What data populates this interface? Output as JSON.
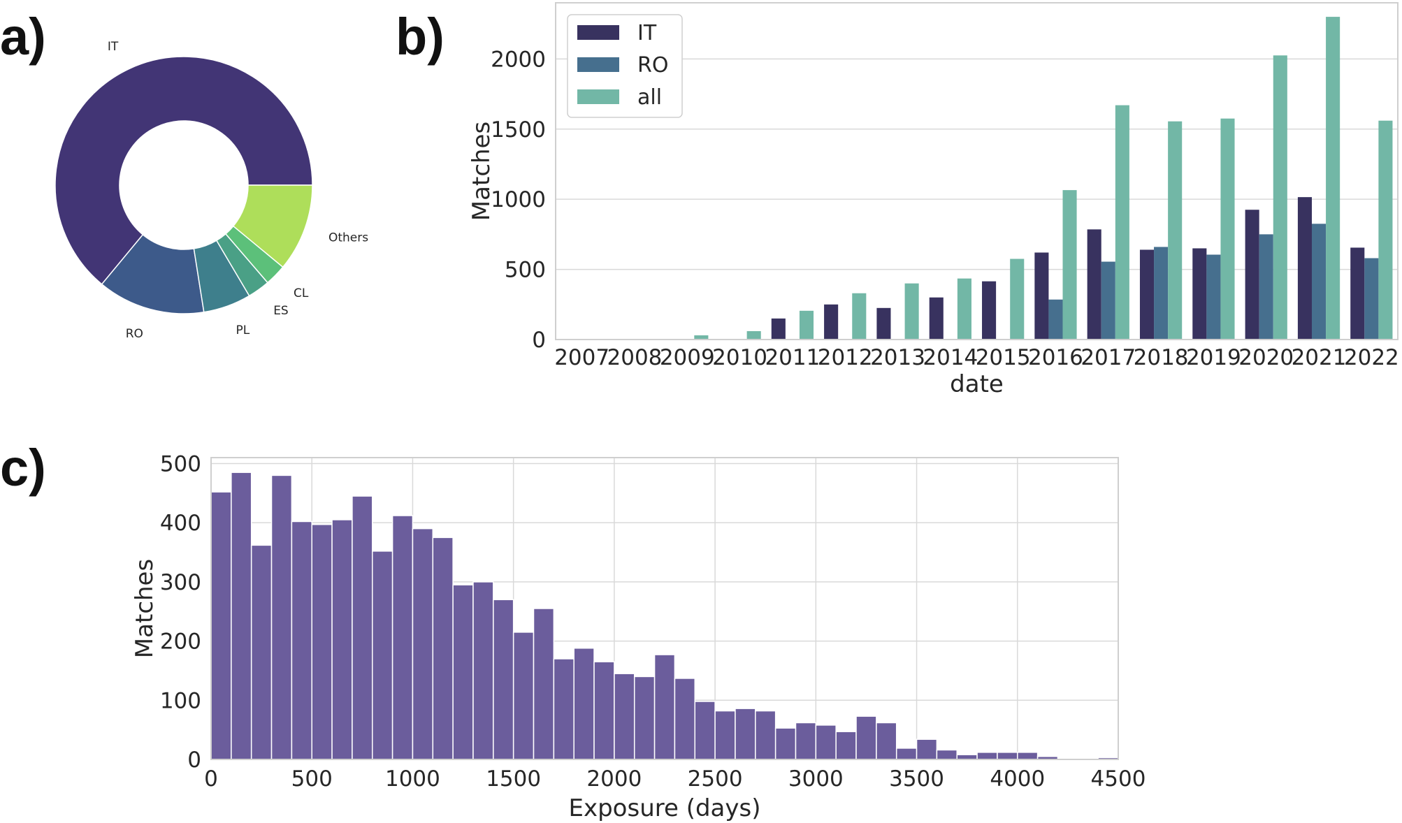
{
  "panels": {
    "a": "a)",
    "b": "b)",
    "c": "c)"
  },
  "chart_data": [
    {
      "id": "a",
      "type": "pie",
      "style": "donut",
      "labels": [
        "IT",
        "RO",
        "PL",
        "ES",
        "CL",
        "Others"
      ],
      "values": [
        64.0,
        13.5,
        6.0,
        2.8,
        2.7,
        11.0
      ],
      "colors": [
        "#423575",
        "#3d5a8a",
        "#3e7f8c",
        "#4aa086",
        "#5cc07a",
        "#aede5a"
      ],
      "title": ""
    },
    {
      "id": "b",
      "type": "bar",
      "title": "",
      "categories": [
        "2007",
        "2008",
        "2009",
        "2010",
        "2011",
        "2012",
        "2013",
        "2014",
        "2015",
        "2016",
        "2017",
        "2018",
        "2019",
        "2020",
        "2021",
        "2022"
      ],
      "series": [
        {
          "name": "IT",
          "color": "#38325f",
          "values": [
            0,
            0,
            0,
            0,
            150,
            250,
            225,
            300,
            415,
            620,
            785,
            640,
            650,
            925,
            1015,
            655
          ]
        },
        {
          "name": "RO",
          "color": "#466f8e",
          "values": [
            0,
            0,
            0,
            0,
            0,
            0,
            0,
            0,
            0,
            285,
            555,
            660,
            605,
            750,
            825,
            580
          ]
        },
        {
          "name": "all",
          "color": "#72b7a6",
          "values": [
            0,
            0,
            30,
            60,
            205,
            330,
            400,
            435,
            575,
            1065,
            1670,
            1555,
            1575,
            2025,
            2300,
            1560
          ]
        }
      ],
      "xlabel": "date",
      "ylabel": "Matches",
      "ylim": [
        0,
        2400
      ],
      "yticks": [
        0,
        500,
        1000,
        1500,
        2000
      ],
      "legend": "top-left"
    },
    {
      "id": "c",
      "type": "bar",
      "subtype": "histogram",
      "title": "",
      "bin_width": 100,
      "bin_start": 0,
      "values": [
        452,
        485,
        362,
        480,
        402,
        397,
        405,
        445,
        352,
        412,
        390,
        375,
        295,
        300,
        270,
        215,
        255,
        170,
        188,
        165,
        145,
        140,
        177,
        137,
        98,
        82,
        86,
        82,
        53,
        62,
        58,
        47,
        73,
        62,
        19,
        34,
        16,
        8,
        12,
        12,
        12,
        5,
        0,
        0,
        3
      ],
      "color": "#6b5d9c",
      "xlabel": "Exposure (days)",
      "ylabel": "Matches",
      "xlim": [
        0,
        4500
      ],
      "ylim": [
        0,
        510
      ],
      "xticks": [
        0,
        500,
        1000,
        1500,
        2000,
        2500,
        3000,
        3500,
        4000,
        4500
      ],
      "yticks": [
        0,
        100,
        200,
        300,
        400,
        500
      ]
    }
  ]
}
